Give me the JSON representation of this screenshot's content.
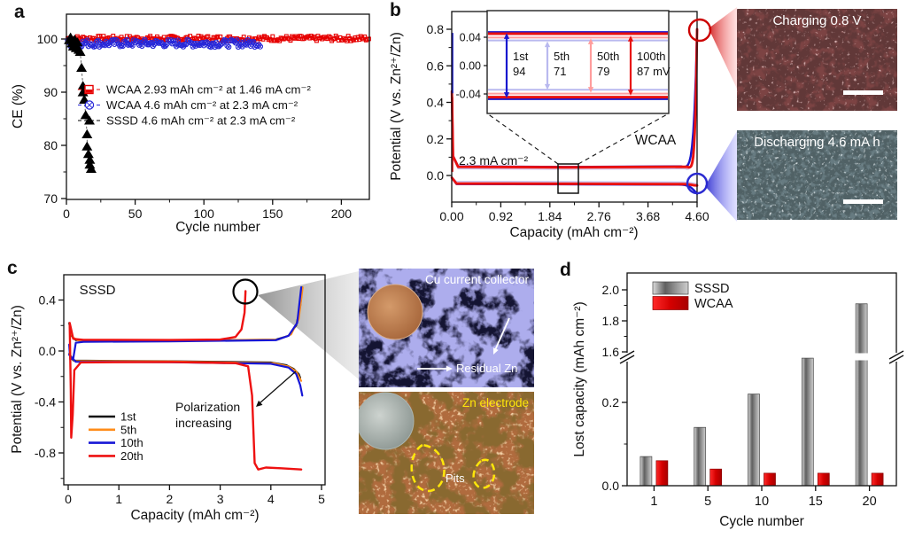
{
  "figure": {
    "panel_labels": [
      "a",
      "b",
      "c",
      "d"
    ]
  },
  "chart_data": [
    {
      "id": "a",
      "type": "scatter",
      "xlabel": "Cycle number",
      "ylabel": "CE (%)",
      "xlim": [
        0,
        221
      ],
      "xticks": [
        0,
        50,
        100,
        150,
        200
      ],
      "ylim": [
        70,
        104
      ],
      "yticks": [
        70,
        80,
        90,
        100
      ],
      "series": [
        {
          "name": "WCAA 2.93 mAh cm⁻² at 1.46 mA cm⁻²",
          "marker": "open-square",
          "color": "#e60000",
          "cycles": [
            1,
            220
          ],
          "ce_mean": 100.1,
          "ce_spread": 1.0
        },
        {
          "name": "WCAA 4.6 mAh cm⁻² at 2.3 mA cm⁻²",
          "marker": "circle-x",
          "color": "#2727d8",
          "cycles": [
            1,
            141
          ],
          "ce_mean": 99.2,
          "ce_spread": 1.4
        },
        {
          "name": "SSSD 4.6 mAh cm⁻² at 2.3 mA cm⁻²",
          "marker": "triangle",
          "color": "#000000",
          "points": [
            [
              2,
              99.8
            ],
            [
              3,
              100.3
            ],
            [
              4,
              99.2
            ],
            [
              5,
              98.6
            ],
            [
              6,
              99.9
            ],
            [
              7,
              98.3
            ],
            [
              8,
              99.4
            ],
            [
              9,
              98.0
            ],
            [
              10,
              97.6
            ],
            [
              11,
              94.6
            ],
            [
              12,
              91.2
            ],
            [
              12,
              90.0
            ],
            [
              13,
              88.6
            ],
            [
              14,
              85.7
            ],
            [
              15,
              82.1
            ],
            [
              15,
              79.8
            ],
            [
              16,
              78.4
            ],
            [
              17,
              77.3
            ],
            [
              17,
              76.4
            ],
            [
              18,
              75.6
            ]
          ]
        }
      ]
    },
    {
      "id": "b",
      "type": "line",
      "system_label": "WCAA",
      "current_label": "2.3 mA cm⁻²",
      "xlabel": "Capacity (mAh cm⁻²)",
      "ylabel": "Potential (V vs. Zn²⁺/Zn)",
      "xtick_vals": [
        0,
        0.92,
        1.84,
        2.76,
        3.68,
        4.6
      ],
      "xtick_labels": [
        "0.00",
        "0.92",
        "1.84",
        "2.76",
        "3.68",
        "4.60"
      ],
      "ytick_vals": [
        0,
        0.2,
        0.4,
        0.6,
        0.8
      ],
      "ytick_labels": [
        "0.0",
        "0.2",
        "0.4",
        "0.6",
        "0.8"
      ],
      "capacity_max": 4.6,
      "charge_cutoff_V": 0.8,
      "series": [
        {
          "name": "1st",
          "color": "#1818cf",
          "polarization_mV": 94,
          "charge_plateau_V": 0.047,
          "discharge_plateau_V": -0.047,
          "rise_start": 4.3,
          "end_dip_V": -0.1,
          "width": 2.4
        },
        {
          "name": "5th",
          "color": "#b9b9ef",
          "polarization_mV": 71,
          "charge_plateau_V": 0.0355,
          "discharge_plateau_V": -0.034,
          "rise_start": 4.38,
          "end_dip_V": -0.045,
          "width": 1.7
        },
        {
          "name": "50th",
          "color": "#ff9d9d",
          "polarization_mV": 79,
          "charge_plateau_V": 0.0395,
          "discharge_plateau_V": -0.0395,
          "rise_start": 4.38,
          "end_dip_V": -0.05,
          "width": 1.7
        },
        {
          "name": "100th",
          "color": "#e81010",
          "polarization_mV": 87,
          "charge_plateau_V": 0.045,
          "discharge_plateau_V": -0.0445,
          "rise_start": 4.42,
          "end_dip_V": -0.055,
          "width": 2.8
        }
      ],
      "inset": {
        "ytick_vals": [
          0.04,
          0,
          -0.04
        ],
        "ytick_labels": [
          "0.04",
          "0.00",
          "-0.04"
        ],
        "arrows": [
          {
            "line1": "1st",
            "line2": "94",
            "mV": 94,
            "color": "#1818cf"
          },
          {
            "line1": "5th",
            "line2": "71",
            "mV": 71,
            "color": "#b9b9ef"
          },
          {
            "line1": "50th",
            "line2": "79",
            "mV": 79,
            "color": "#ff9d9d"
          },
          {
            "line1": "100th",
            "line2": "87 mV",
            "mV": 87,
            "color": "#e81010"
          }
        ]
      }
    },
    {
      "id": "c",
      "type": "line",
      "system_label": "SSSD",
      "annotation": "Polarization increasing",
      "xlabel": "Capacity (mAh cm⁻²)",
      "ylabel": "Potential (V vs. Zn²⁺/Zn)",
      "xticks": [
        0,
        1,
        2,
        3,
        4,
        5
      ],
      "ytick_vals": [
        0.4,
        0,
        -0.4,
        -0.8
      ],
      "ytick_labels": [
        "0.4",
        "0.0",
        "-0.4",
        "-0.8"
      ],
      "series": [
        {
          "name": "1st",
          "color": "#111111",
          "width": 2,
          "charge": [
            [
              0.02,
              0.22
            ],
            [
              0.06,
              0.12
            ],
            [
              0.15,
              0.085
            ],
            [
              2,
              0.082
            ],
            [
              4.1,
              0.09
            ],
            [
              4.35,
              0.12
            ],
            [
              4.5,
              0.2
            ],
            [
              4.58,
              0.35
            ],
            [
              4.62,
              0.5
            ]
          ],
          "discharge": [
            [
              0.02,
              -0.02
            ],
            [
              0.1,
              -0.075
            ],
            [
              2,
              -0.08
            ],
            [
              4.0,
              -0.09
            ],
            [
              4.3,
              -0.11
            ],
            [
              4.45,
              -0.14
            ],
            [
              4.55,
              -0.18
            ],
            [
              4.58,
              -0.21
            ]
          ]
        },
        {
          "name": "5th",
          "color": "#ff8c1a",
          "width": 2,
          "charge": [
            [
              0.03,
              0.2
            ],
            [
              0.08,
              0.11
            ],
            [
              0.2,
              0.083
            ],
            [
              2,
              0.08
            ],
            [
              4.15,
              0.09
            ],
            [
              4.4,
              0.13
            ],
            [
              4.55,
              0.25
            ],
            [
              4.63,
              0.5
            ]
          ],
          "discharge": [
            [
              0.02,
              -0.02
            ],
            [
              0.12,
              -0.078
            ],
            [
              2,
              -0.082
            ],
            [
              4.05,
              -0.095
            ],
            [
              4.35,
              -0.12
            ],
            [
              4.5,
              -0.16
            ],
            [
              4.6,
              -0.235
            ]
          ]
        },
        {
          "name": "10th",
          "color": "#1616d6",
          "width": 2.2,
          "charge": [
            [
              0.02,
              0.05
            ],
            [
              0.04,
              -0.065
            ],
            [
              0.1,
              -0.06
            ],
            [
              0.15,
              0.065
            ],
            [
              0.3,
              0.072
            ],
            [
              2,
              0.075
            ],
            [
              4.1,
              0.085
            ],
            [
              4.35,
              0.12
            ],
            [
              4.52,
              0.22
            ],
            [
              4.6,
              0.5
            ]
          ],
          "discharge": [
            [
              0.02,
              -0.03
            ],
            [
              0.15,
              -0.085
            ],
            [
              2,
              -0.088
            ],
            [
              4.0,
              -0.1
            ],
            [
              4.35,
              -0.13
            ],
            [
              4.5,
              -0.18
            ],
            [
              4.58,
              -0.27
            ],
            [
              4.62,
              -0.35
            ]
          ]
        },
        {
          "name": "20th",
          "color": "#ee1111",
          "width": 2.4,
          "charge": [
            [
              0.03,
              0.22
            ],
            [
              0.1,
              0.095
            ],
            [
              0.3,
              0.088
            ],
            [
              2,
              0.086
            ],
            [
              3.0,
              0.09
            ],
            [
              3.3,
              0.11
            ],
            [
              3.42,
              0.17
            ],
            [
              3.48,
              0.3
            ],
            [
              3.5,
              0.47
            ]
          ],
          "discharge": [
            [
              0.03,
              0.2
            ],
            [
              0.05,
              -0.3
            ],
            [
              0.06,
              -0.68
            ],
            [
              0.09,
              -0.5
            ],
            [
              0.12,
              -0.15
            ],
            [
              0.25,
              -0.09
            ],
            [
              2,
              -0.086
            ],
            [
              3.3,
              -0.095
            ],
            [
              3.55,
              -0.12
            ],
            [
              3.63,
              -0.35
            ],
            [
              3.68,
              -0.88
            ],
            [
              3.75,
              -0.93
            ],
            [
              3.9,
              -0.915
            ],
            [
              4.2,
              -0.92
            ],
            [
              4.6,
              -0.93
            ]
          ]
        }
      ]
    },
    {
      "id": "d",
      "type": "bar",
      "xlabel": "Cycle number",
      "ylabel": "Lost capacity (mAh cm⁻²)",
      "categories": [
        "1",
        "5",
        "10",
        "15",
        "20"
      ],
      "axis_break": [
        0.3,
        1.6
      ],
      "ytick_lower": {
        "vals": [
          0,
          0.2
        ],
        "labels": [
          "0.0",
          "0.2"
        ]
      },
      "ytick_upper": {
        "vals": [
          1.6,
          1.8,
          2.0
        ],
        "labels": [
          "1.6",
          "1.8",
          "2.0"
        ]
      },
      "series": [
        {
          "name": "SSSD",
          "style": "gray-gradient",
          "values": [
            0.07,
            0.14,
            0.22,
            1.55,
            1.91
          ]
        },
        {
          "name": "WCAA",
          "style": "red",
          "color": "#e00000",
          "values": [
            0.06,
            0.04,
            0.03,
            0.03,
            0.03
          ]
        }
      ]
    }
  ],
  "images": {
    "charging": {
      "label": "Charging 0.8 V"
    },
    "discharging": {
      "label": "Discharging 4.6 mA h"
    },
    "cu_collector": {
      "label": "Cu current collector",
      "annotation": "Residual Zn"
    },
    "zn_electrode": {
      "label": "Zn electrode",
      "annotation": "Pits"
    }
  }
}
